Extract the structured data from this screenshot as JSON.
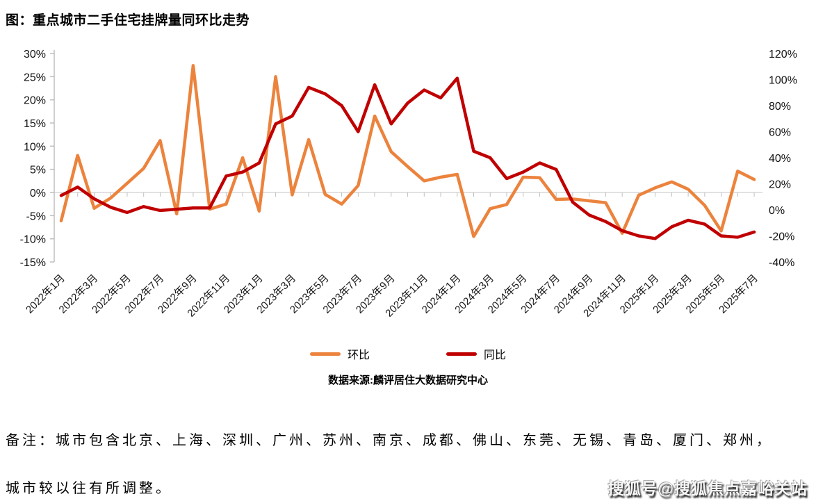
{
  "title": "图：重点城市二手住宅挂牌量同环比走势",
  "legend": {
    "items": [
      {
        "label": "环比",
        "color": "#EC833D"
      },
      {
        "label": "同比",
        "color": "#C00000"
      }
    ]
  },
  "source": "数据来源:麟评居住大数据研究中心",
  "note": {
    "line1": "备注：城市包含北京、上海、深圳、广州、苏州、南京、成都、佛山、东莞、无锡、青岛、厦门、郑州，",
    "line2": "城市较以往有所调整。"
  },
  "watermark": "搜狐号@搜狐焦点嘉峪关站",
  "chart_data": {
    "type": "line",
    "categories": [
      "2022年1月",
      "2022年2月",
      "2022年3月",
      "2022年4月",
      "2022年5月",
      "2022年6月",
      "2022年7月",
      "2022年8月",
      "2022年9月",
      "2022年10月",
      "2022年11月",
      "2022年12月",
      "2023年1月",
      "2023年2月",
      "2023年3月",
      "2023年4月",
      "2023年5月",
      "2023年6月",
      "2023年7月",
      "2023年8月",
      "2023年9月",
      "2023年10月",
      "2023年11月",
      "2023年12月",
      "2024年1月",
      "2024年2月",
      "2024年3月",
      "2024年4月",
      "2024年5月",
      "2024年6月",
      "2024年7月",
      "2024年8月",
      "2024年9月",
      "2024年10月",
      "2024年11月",
      "2024年12月",
      "2025年1月",
      "2025年2月",
      "2025年3月",
      "2025年4月",
      "2025年5月",
      "2025年6月",
      "2025年7月"
    ],
    "x_label_step": 2,
    "left_axis": {
      "min": -15,
      "max": 30,
      "ticks": [
        30,
        25,
        20,
        15,
        10,
        5,
        0,
        -5,
        -10,
        -15
      ],
      "suffix": "%"
    },
    "right_axis": {
      "min": -40,
      "max": 120,
      "ticks": [
        120,
        100,
        80,
        60,
        40,
        20,
        0,
        -20,
        -40
      ],
      "suffix": "%"
    },
    "gridline_color": "#D9D9D9",
    "axis_color": "#BFBFBF",
    "series": [
      {
        "name": "环比",
        "axis": "left",
        "color": "#EC833D",
        "values": [
          -6.1,
          8,
          -3.4,
          -1.2,
          2,
          5.2,
          11.2,
          -4.6,
          27.4,
          -3.6,
          -2.5,
          7.5,
          -4,
          25,
          -0.5,
          11.4,
          -0.4,
          -2.5,
          1.5,
          16.5,
          8.8,
          5.6,
          2.5,
          3.3,
          3.9,
          -9.5,
          -3.5,
          -2.6,
          3.3,
          3.2,
          -1.5,
          -1.4,
          -1.8,
          -2.2,
          -8.8,
          -0.6,
          1,
          2.3,
          0.7,
          -2.8,
          -8.3,
          4.6,
          2.8
        ]
      },
      {
        "name": "同比",
        "axis": "right",
        "color": "#C00000",
        "values": [
          11,
          17.5,
          8.5,
          2,
          -2,
          2.5,
          -0.5,
          0.5,
          1.5,
          1.5,
          26,
          29,
          36,
          66,
          72,
          94,
          89,
          80,
          60,
          96,
          66,
          82,
          92,
          86,
          101,
          45,
          40,
          24,
          29,
          36,
          31,
          6,
          -4,
          -9,
          -16,
          -20,
          -22,
          -13,
          -8,
          -11,
          -20,
          -21,
          -17
        ]
      }
    ]
  }
}
